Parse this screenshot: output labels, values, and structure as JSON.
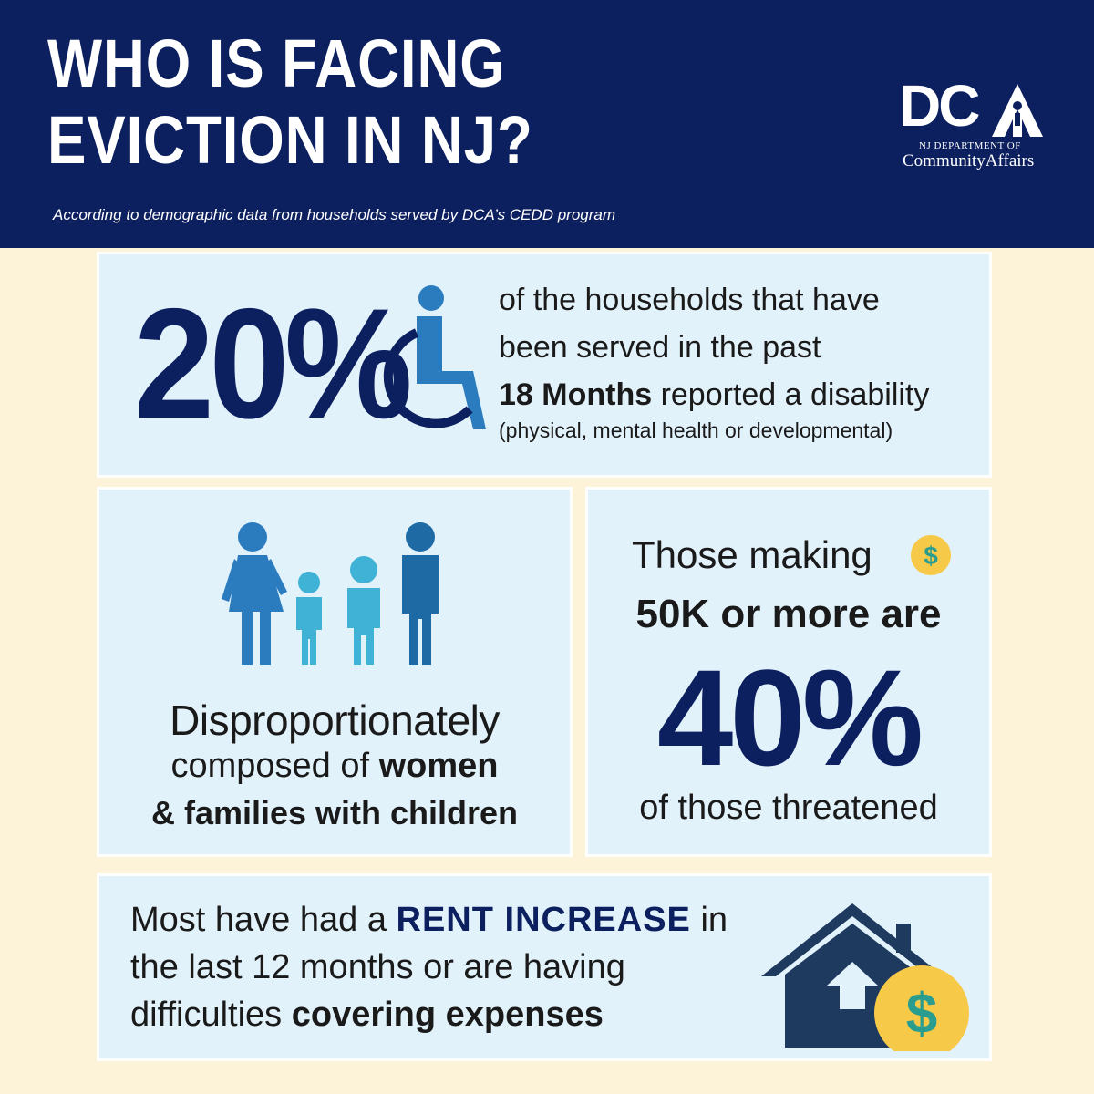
{
  "header": {
    "title_line1": "WHO IS FACING",
    "title_line2": "EVICTION IN NJ?",
    "subtitle": "According to demographic data from households served by DCA’s CEDD program",
    "logo_mark": "DC",
    "logo_line1": "NJ DEPARTMENT OF",
    "logo_line2": "CommunityAffairs"
  },
  "disability": {
    "stat": "20%",
    "line1": "of the households that have",
    "line2": "been served in the past",
    "line3_bold": "18 Months",
    "line3_rest": " reported a disability",
    "note": "(physical, mental health or developmental)",
    "icon": "wheelchair-icon"
  },
  "families": {
    "line1": "Disproportionately",
    "line2_a": "composed of ",
    "line2_b": "women",
    "line3": "& families with children",
    "icon": "family-icon"
  },
  "income": {
    "line1": "Those making",
    "line2": "50K or more are",
    "stat": "40%",
    "line4": "of those threatened",
    "coin_symbol": "$"
  },
  "rent": {
    "part1": "Most have had a ",
    "highlight": "RENT INCREASE",
    "part2": " in the last 12 months or are having difficulties ",
    "bold_end": "covering expenses",
    "coin_symbol": "$",
    "icon": "house-icon"
  },
  "colors": {
    "navy": "#0c1f5e",
    "panel": "#e2f2fb",
    "background": "#fdf3d8",
    "coin": "#f7c948",
    "dollar": "#2a9d8f",
    "icon_blue": "#2b7bbf"
  }
}
